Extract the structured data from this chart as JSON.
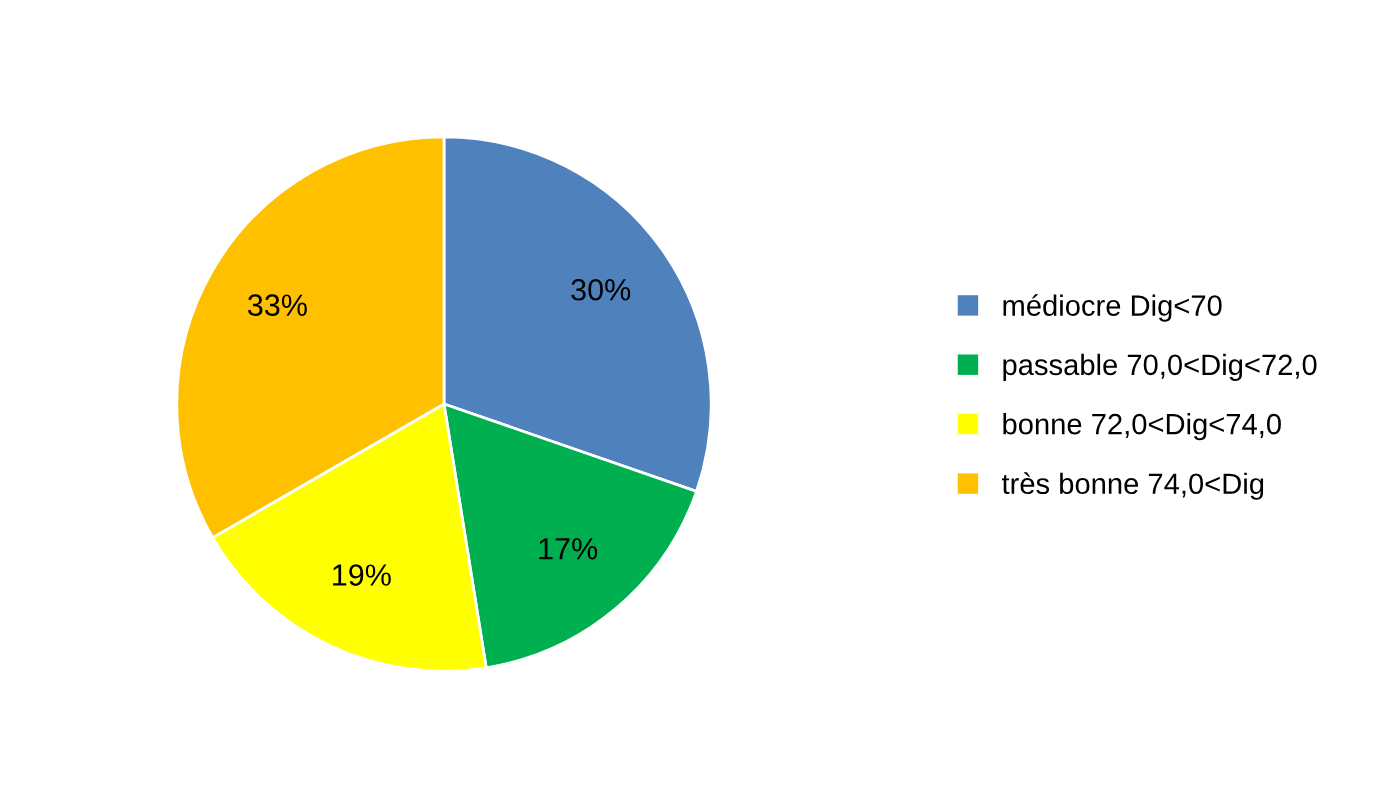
{
  "chart_data": {
    "type": "pie",
    "categories": [
      "médiocre Dig<70",
      "passable 70,0<Dig<72,0",
      "bonne 72,0<Dig<74,0",
      "très bonne 74,0<Dig"
    ],
    "values": [
      30,
      17,
      19,
      33
    ],
    "colors": [
      "#4f81bd",
      "#00b050",
      "#ffff00",
      "#ffc000"
    ],
    "value_labels": [
      "30%",
      "17%",
      "19%",
      "33%"
    ],
    "legend": "right"
  }
}
